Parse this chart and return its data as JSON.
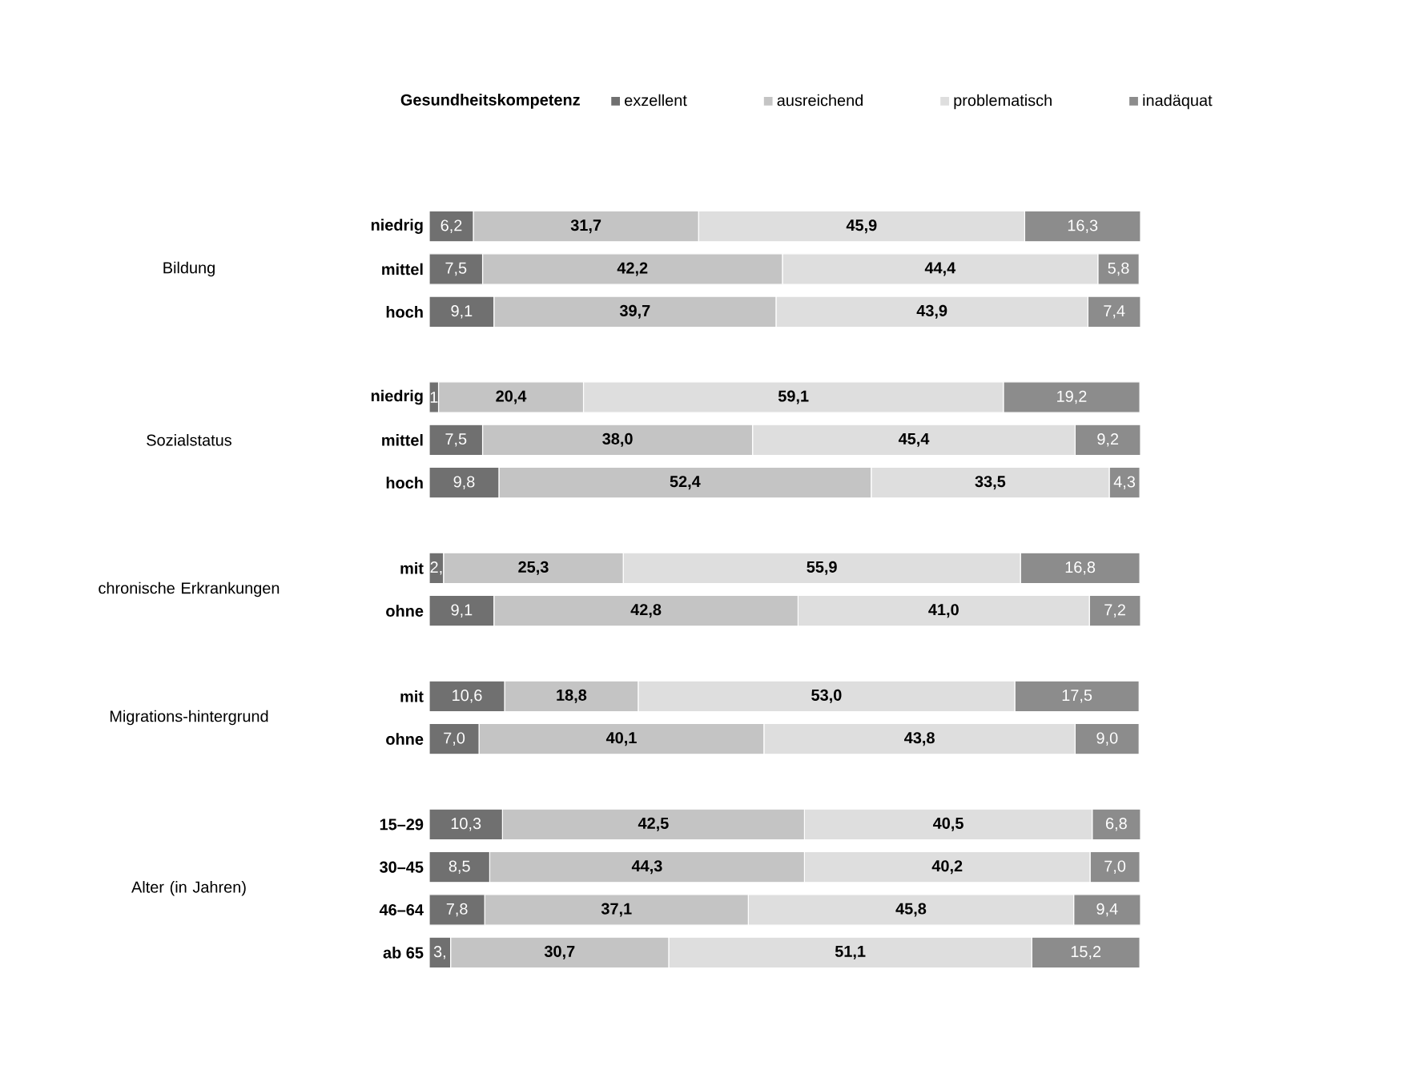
{
  "chart_data": {
    "type": "bar",
    "orientation": "horizontal",
    "stacked": true,
    "legend": "top",
    "legend_title": "Gesundheitskompetenz",
    "categories": [
      "niedrig",
      "mittel",
      "hoch",
      null,
      "niedrig",
      "mittel",
      "hoch",
      null,
      "mit",
      "ohne",
      null,
      "mit",
      "ohne",
      null,
      "15–29",
      "30–45",
      "46–64",
      "ab 65"
    ],
    "annotations": [
      "Bildung",
      "Sozialstatus",
      "chronische Erkrankungen",
      "Migrations-hintergrund",
      "Alter (in Jahren)"
    ],
    "series": [
      {
        "name": "exzellent",
        "color": "#707070",
        "values": [
          6.2,
          7.5,
          9.1,
          null,
          1.3,
          7.5,
          9.8,
          null,
          2.0,
          9.1,
          null,
          10.6,
          7.0,
          null,
          10.3,
          8.5,
          7.8,
          3.0
        ],
        "value_labels": [
          "6,2",
          "7,5",
          "9,1",
          null,
          "1",
          "7,5",
          "9,8",
          null,
          "2,",
          "9,1",
          null,
          "10,6",
          "7,0",
          null,
          "10,3",
          "8,5",
          "7,8",
          "3,"
        ]
      },
      {
        "name": "ausreichend",
        "color": "#c4c4c4",
        "values": [
          31.7,
          42.2,
          39.7,
          null,
          20.4,
          38.0,
          52.4,
          null,
          25.3,
          42.8,
          null,
          18.8,
          40.1,
          null,
          42.5,
          44.3,
          37.1,
          30.7
        ],
        "value_labels": [
          "31,7",
          "42,2",
          "39,7",
          null,
          "20,4",
          "38,0",
          "52,4",
          null,
          "25,3",
          "42,8",
          null,
          "18,8",
          "40,1",
          null,
          "42,5",
          "44,3",
          "37,1",
          "30,7"
        ]
      },
      {
        "name": "problematisch",
        "color": "#dedede",
        "values": [
          45.9,
          44.4,
          43.9,
          null,
          59.1,
          45.4,
          33.5,
          null,
          55.9,
          41.0,
          null,
          53.0,
          43.8,
          null,
          40.5,
          40.2,
          45.8,
          51.1
        ],
        "value_labels": [
          "45,9",
          "44,4",
          "43,9",
          null,
          "59,1",
          "45,4",
          "33,5",
          null,
          "55,9",
          "41,0",
          null,
          "53,0",
          "43,8",
          null,
          "40,5",
          "40,2",
          "45,8",
          "51,1"
        ]
      },
      {
        "name": "inadäquat",
        "color": "#8c8c8c",
        "values": [
          16.3,
          5.8,
          7.4,
          null,
          19.2,
          9.2,
          4.3,
          null,
          16.8,
          7.2,
          null,
          17.5,
          9.0,
          null,
          6.8,
          7.0,
          9.4,
          15.2
        ],
        "value_labels": [
          "16,3",
          "5,8",
          "7,4",
          null,
          "19,2",
          "9,2",
          "4,3",
          null,
          "16,8",
          "7,2",
          null,
          "17,5",
          "9,0",
          null,
          "6,8",
          "7,0",
          "9,4",
          "15,2"
        ]
      }
    ]
  }
}
